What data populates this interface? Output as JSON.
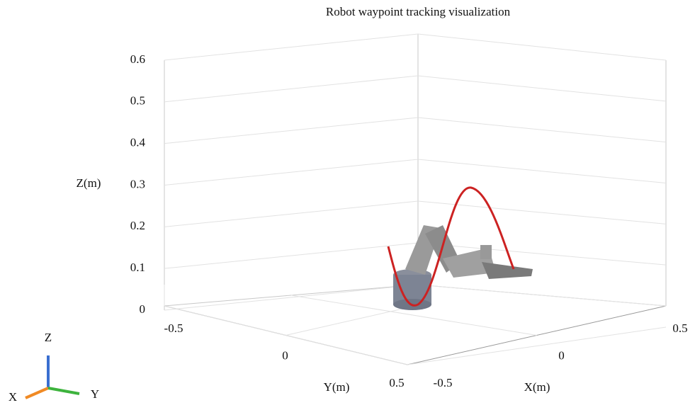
{
  "chart_data": {
    "type": "line3d",
    "title": "Robot waypoint tracking visualization",
    "xlabel": "X(m)",
    "ylabel": "Y(m)",
    "zlabel": "Z(m)",
    "xlim": [
      -0.5,
      0.5
    ],
    "xticks": [
      -0.5,
      0,
      0.5
    ],
    "ylim": [
      -0.5,
      0.5
    ],
    "yticks": [
      -0.5,
      0,
      0.5
    ],
    "zlim": [
      0,
      0.6
    ],
    "zticks": [
      0,
      0.1,
      0.2,
      0.3,
      0.4,
      0.5,
      0.6
    ],
    "grid": true
  },
  "orientation_triad": {
    "x": "X",
    "y": "Y",
    "z": "Z"
  }
}
